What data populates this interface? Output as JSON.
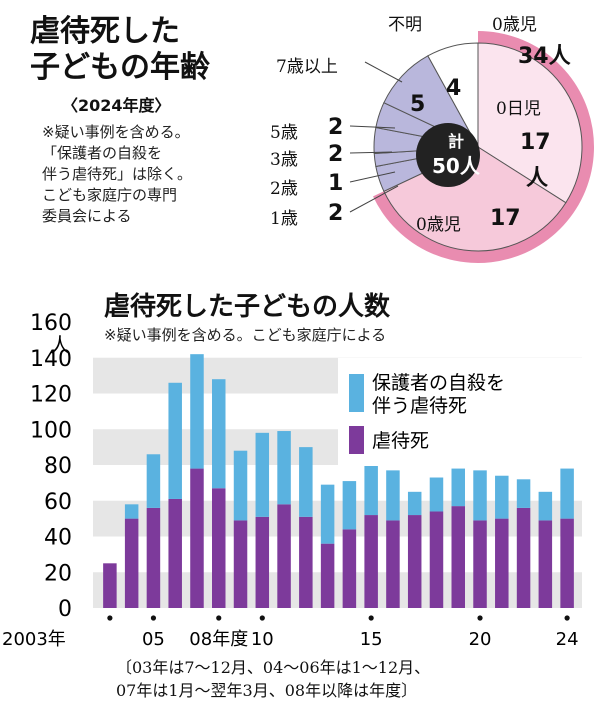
{
  "colors": {
    "abuse": "#7d3a9b",
    "suicide": "#5ab2e0",
    "grid_band": "#e6e6e6",
    "pie_pink_light": "#f6c9da",
    "pie_pink_inner": "#fbe4ee",
    "pie_lavender": "#b9b7dc",
    "pie_dark": "#222222"
  },
  "pie": {
    "title_line1": "虐待死した",
    "title_line2": "子どもの年齢",
    "fiscal_year": "〈2024年度〉",
    "notes": [
      "※疑い事例を含める。",
      "「保護者の自殺を",
      "伴う虐待死」は除く。",
      "こども家庭庁の専門",
      "委員会による"
    ],
    "center_label": "計",
    "center_value": "50人",
    "segments": [
      {
        "label": "0日児",
        "value": "17",
        "value_suffix": "人"
      },
      {
        "label": "0歳児",
        "value": "17"
      },
      {
        "label": "1歳",
        "value": "2"
      },
      {
        "label": "2歳",
        "value": "1"
      },
      {
        "label": "3歳",
        "value": "2"
      },
      {
        "label": "5歳",
        "value": "2"
      },
      {
        "label": "7歳以上",
        "value": "5"
      },
      {
        "label": "不明",
        "value": "4"
      }
    ],
    "zero_year_total_label": "0歳児",
    "zero_year_total_value": "34人"
  },
  "bars": {
    "title": "虐待死した子どもの人数",
    "note": "※疑い事例を含める。こども家庭庁による",
    "y_unit": "人",
    "legend": {
      "suicide": [
        "保護者の自殺を",
        "伴う虐待死"
      ],
      "abuse": "虐待死"
    },
    "x_tick_labels": [
      {
        "label": "2003年",
        "index": 0
      },
      {
        "label": "05",
        "index": 2
      },
      {
        "label": "08年度",
        "index": 5
      },
      {
        "label": "10",
        "index": 7
      },
      {
        "label": "15",
        "index": 12
      },
      {
        "label": "20",
        "index": 17
      },
      {
        "label": "24",
        "index": 21
      }
    ],
    "footnote_line1": "〔03年は7～12月、04～06年は1～12月、",
    "footnote_line2": " 07年は1月～翌年3月、08年以降は年度〕"
  },
  "chart_data": [
    {
      "type": "pie",
      "title": "虐待死した子どもの年齢",
      "categories": [
        "0日児",
        "0歳児",
        "1歳",
        "2歳",
        "3歳",
        "5歳",
        "7歳以上",
        "不明"
      ],
      "values": [
        17,
        17,
        2,
        1,
        2,
        2,
        5,
        4
      ],
      "total": 50
    },
    {
      "type": "bar",
      "stacked": true,
      "title": "虐待死した子どもの人数",
      "categories": [
        "03",
        "04",
        "05",
        "06",
        "07",
        "08",
        "09",
        "10",
        "11",
        "12",
        "13",
        "14",
        "15",
        "16",
        "17",
        "18",
        "19",
        "20",
        "21",
        "22",
        "23",
        "24"
      ],
      "series": [
        {
          "name": "虐待死",
          "values": [
            25,
            50,
            56,
            61,
            78,
            67,
            49,
            51,
            58,
            51,
            36,
            44,
            52,
            49,
            52,
            54,
            57,
            49,
            50,
            56,
            49,
            50
          ]
        },
        {
          "name": "保護者の自殺を伴う虐待死",
          "values": [
            0,
            8,
            30,
            65,
            64,
            61,
            39,
            47,
            41,
            39,
            33,
            27,
            32,
            28,
            13,
            19,
            21,
            28,
            24,
            16,
            16,
            28
          ]
        }
      ],
      "ylim": [
        0,
        160
      ],
      "yticks": [
        0,
        20,
        40,
        60,
        80,
        100,
        120,
        140,
        160
      ],
      "ylabel": "人",
      "legend_position": "top-right"
    }
  ]
}
